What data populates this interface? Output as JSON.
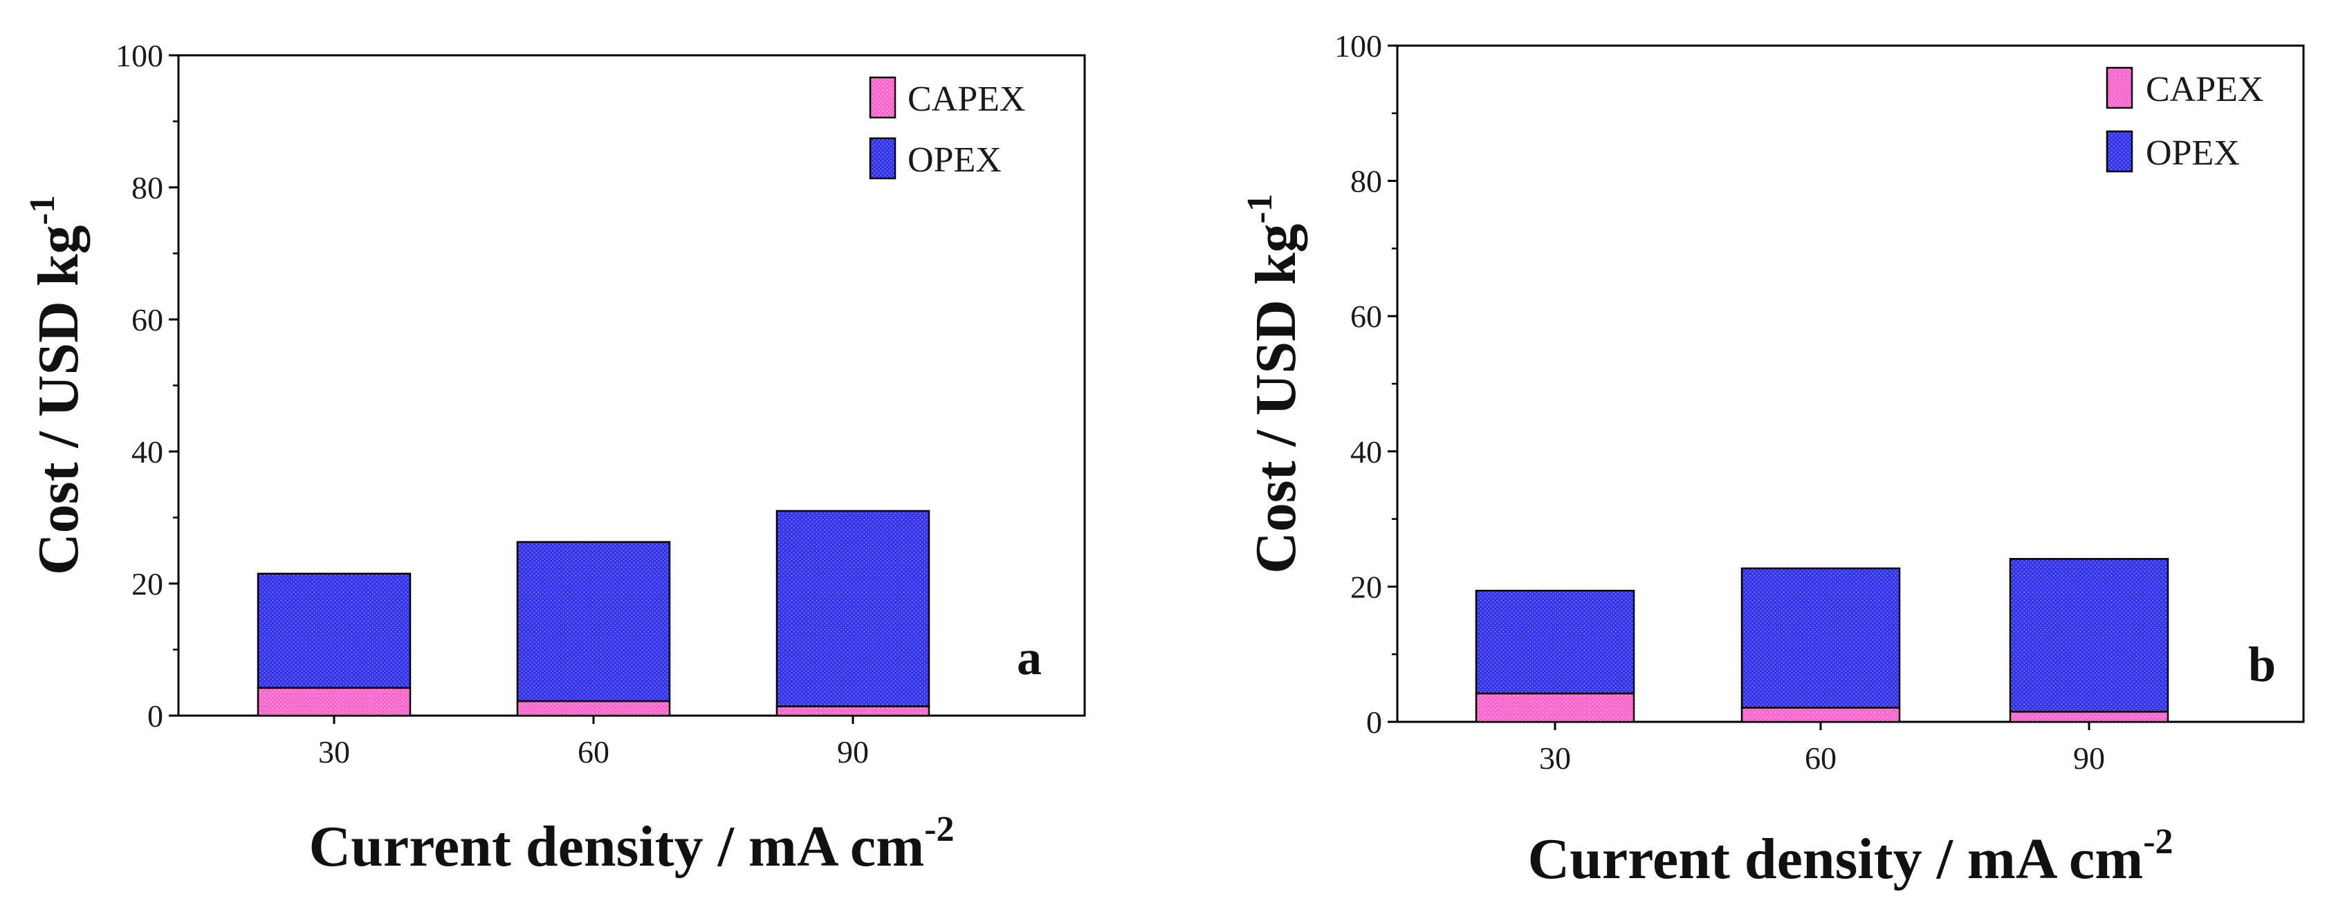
{
  "chart_data": [
    {
      "panel_label": "a",
      "type": "bar",
      "stacked": true,
      "categories": [
        "30",
        "60",
        "90"
      ],
      "series": [
        {
          "name": "CAPEX",
          "values": [
            4.2,
            2.2,
            1.4
          ],
          "color": "#ff66cc"
        },
        {
          "name": "OPEX",
          "values": [
            17.3,
            24.1,
            29.6
          ],
          "color": "#3333ee"
        }
      ],
      "xlabel": "Current density / mA cm",
      "xlabel_sup": "-2",
      "ylabel": "Cost / USD kg",
      "ylabel_sup": "-1",
      "ylim": [
        0,
        100
      ],
      "yticks": [
        "0",
        "20",
        "40",
        "60",
        "80",
        "100"
      ],
      "legend_position": "top-right"
    },
    {
      "panel_label": "b",
      "type": "bar",
      "stacked": true,
      "categories": [
        "30",
        "60",
        "90"
      ],
      "series": [
        {
          "name": "CAPEX",
          "values": [
            4.2,
            2.1,
            1.5
          ],
          "color": "#ff66cc"
        },
        {
          "name": "OPEX",
          "values": [
            15.2,
            20.6,
            22.6
          ],
          "color": "#3333ee"
        }
      ],
      "xlabel": "Current density / mA cm",
      "xlabel_sup": "-2",
      "ylabel": "Cost / USD kg",
      "ylabel_sup": "-1",
      "ylim": [
        0,
        100
      ],
      "yticks": [
        "0",
        "20",
        "40",
        "60",
        "80",
        "100"
      ],
      "legend_position": "top-right"
    }
  ]
}
